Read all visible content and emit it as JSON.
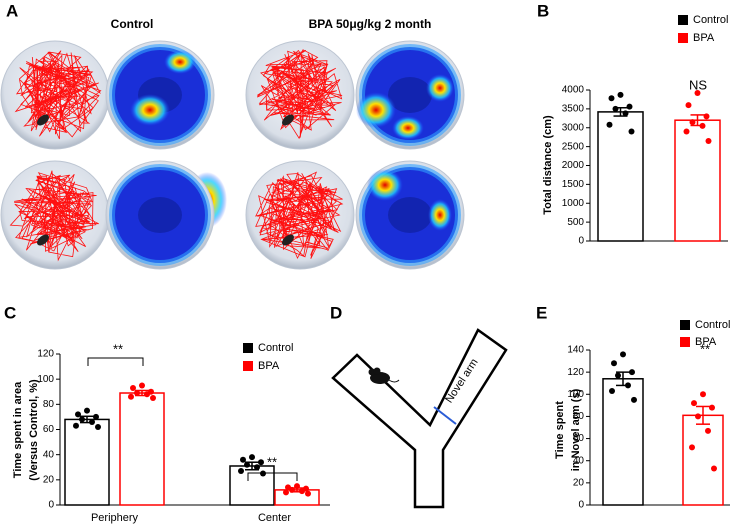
{
  "panel_labels": [
    "A",
    "B",
    "C",
    "D",
    "E"
  ],
  "panel_a": {
    "columns": [
      "Control",
      "BPA 50μg/kg 2 month"
    ]
  },
  "panel_d": {
    "arm_label": "Novel arm"
  },
  "chart_data": [
    {
      "type": "bar",
      "ylabel": [
        "Total distance (cm)"
      ],
      "categories": [
        null
      ],
      "series": [
        {
          "name": "Control",
          "color": "#000000",
          "values": [
            3420
          ],
          "errors": [
            110
          ],
          "points": [
            [
              3870,
              3780,
              3560,
              3500,
              3380,
              3080,
              2900
            ]
          ]
        },
        {
          "name": "BPA",
          "color": "#ff0000",
          "values": [
            3200
          ],
          "errors": [
            140
          ],
          "points": [
            [
              3920,
              3600,
              3300,
              3150,
              3050,
              2900,
              2650
            ]
          ]
        }
      ],
      "ylim": [
        0,
        4000
      ],
      "yticks": [
        0,
        500,
        1000,
        1500,
        2000,
        2500,
        3000,
        3500,
        4000
      ],
      "annotations": [
        "NS"
      ]
    },
    {
      "type": "bar",
      "ylabel": [
        "Time spent in area",
        "(Versus Control, %)"
      ],
      "categories": [
        "Periphery",
        "Center"
      ],
      "series": [
        {
          "name": "Control",
          "color": "#000000",
          "values": [
            68,
            31
          ],
          "errors": [
            2.5,
            3
          ],
          "points": [
            [
              75,
              72,
              70,
              68,
              66,
              63,
              62
            ],
            [
              38,
              36,
              34,
              32,
              30,
              27,
              25
            ]
          ]
        },
        {
          "name": "BPA",
          "color": "#ff0000",
          "values": [
            89,
            12
          ],
          "errors": [
            2,
            1.5
          ],
          "points": [
            [
              95,
              93,
              90,
              89,
              88,
              86,
              85
            ],
            [
              15,
              14,
              13,
              12,
              11,
              10,
              9
            ]
          ]
        }
      ],
      "ylim": [
        0,
        120
      ],
      "yticks": [
        0,
        20,
        40,
        60,
        80,
        100,
        120
      ],
      "annotations": [
        "**",
        "**"
      ]
    },
    {
      "type": "bar",
      "ylabel": [
        "Time spent",
        "in Novel arm (s)"
      ],
      "categories": [
        null
      ],
      "series": [
        {
          "name": "Control",
          "color": "#000000",
          "values": [
            114
          ],
          "errors": [
            6
          ],
          "points": [
            [
              136,
              128,
              120,
              117,
              108,
              103,
              95
            ]
          ]
        },
        {
          "name": "BPA",
          "color": "#ff0000",
          "values": [
            81
          ],
          "errors": [
            8
          ],
          "points": [
            [
              100,
              92,
              88,
              80,
              67,
              52,
              33
            ]
          ]
        }
      ],
      "ylim": [
        0,
        140
      ],
      "yticks": [
        0,
        20,
        40,
        60,
        80,
        100,
        120,
        140
      ],
      "annotations": [
        "**"
      ]
    }
  ]
}
